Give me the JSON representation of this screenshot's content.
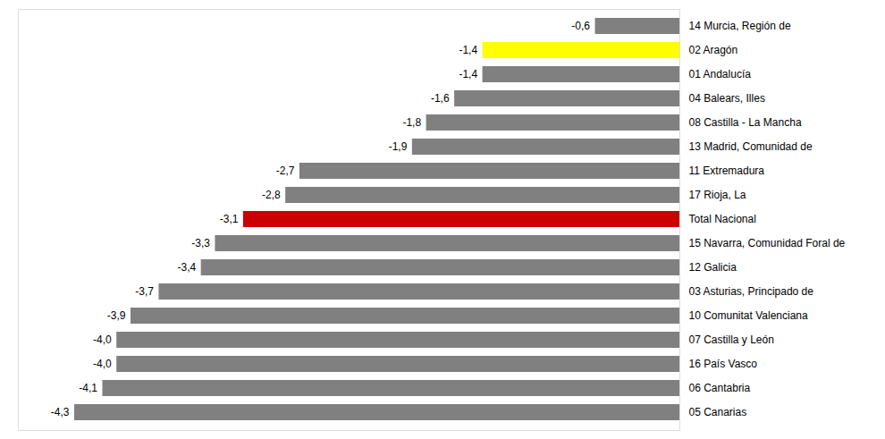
{
  "chart_data": {
    "type": "bar",
    "orientation": "horizontal",
    "categories": [
      "14 Murcia, Región de",
      "02 Aragón",
      "01 Andalucía",
      "04 Balears, Illes",
      "08 Castilla - La Mancha",
      "13 Madrid, Comunidad de",
      "11 Extremadura",
      "17 Rioja, La",
      "Total Nacional",
      "15 Navarra, Comunidad Foral de",
      "12 Galicia",
      "03 Asturias, Principado de",
      "10 Comunitat Valenciana",
      "07 Castilla y León",
      "16 País Vasco",
      "06 Cantabria",
      "05 Canarias"
    ],
    "values": [
      -0.6,
      -1.4,
      -1.4,
      -1.6,
      -1.8,
      -1.9,
      -2.7,
      -2.8,
      -3.1,
      -3.3,
      -3.4,
      -3.7,
      -3.9,
      -4.0,
      -4.0,
      -4.1,
      -4.3
    ],
    "value_labels": [
      "-0,6",
      "-1,4",
      "-1,4",
      "-1,6",
      "-1,8",
      "-1,9",
      "-2,7",
      "-2,8",
      "-3,1",
      "-3,3",
      "-3,4",
      "-3,7",
      "-3,9",
      "-4,0",
      "-4,0",
      "-4,1",
      "-4,3"
    ],
    "colors": [
      "#808080",
      "#ffff00",
      "#808080",
      "#808080",
      "#808080",
      "#808080",
      "#808080",
      "#808080",
      "#cc0000",
      "#808080",
      "#808080",
      "#808080",
      "#808080",
      "#808080",
      "#808080",
      "#808080",
      "#808080"
    ],
    "xlim": [
      -4.7,
      0.0
    ],
    "xticks": [],
    "data_labels": true,
    "tick_labels": "y",
    "grid": false
  }
}
